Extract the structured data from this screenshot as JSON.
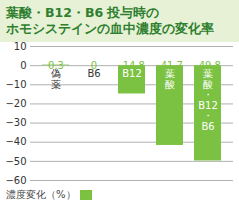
{
  "chart_data": {
    "type": "bar",
    "title": "葉酸・B12・B6 投与時の\nホモシステインの血中濃度の変化率",
    "categories": [
      "偽薬",
      "B6",
      "B12",
      "葉酸",
      "葉酸・B12・B6"
    ],
    "series": [
      {
        "name": "濃度変化（%）",
        "color": "#7cc242",
        "values": [
          0.3,
          0,
          -14.8,
          -41.7,
          -49.8
        ]
      }
    ],
    "ylim": [
      -60,
      10
    ],
    "yticks": [
      -60,
      -50,
      -40,
      -30,
      -20,
      -10,
      0,
      10
    ],
    "grid": true,
    "data_labels": true,
    "tick_labels": "y",
    "legend": "bottom"
  }
}
